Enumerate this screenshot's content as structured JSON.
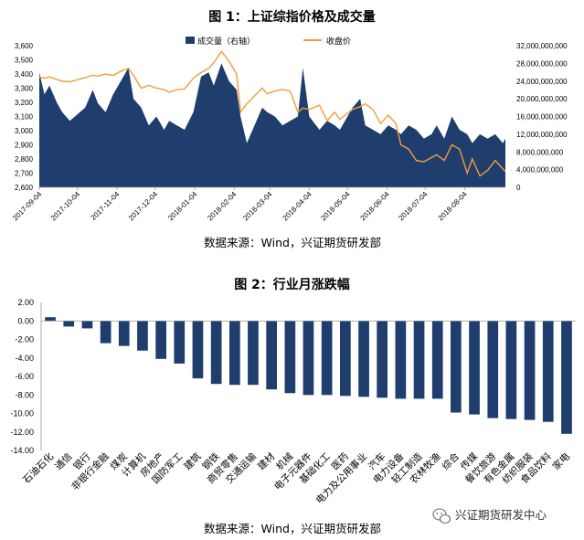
{
  "colors": {
    "volume": "#1f3e6e",
    "close": "#f39c3a",
    "bar": "#1f3e6e",
    "axis": "#999999"
  },
  "chart_data": [
    {
      "type": "area",
      "title": "图 1：上证综指价格及成交量",
      "source": "数据来源：Wind，兴证期货研发部",
      "legend": {
        "position": "top",
        "volume_label": "成交量（右轴）",
        "close_label": "收盘价"
      },
      "left_ticks": [
        "3,600",
        "3,500",
        "3,400",
        "3,300",
        "3,200",
        "3,100",
        "3,000",
        "2,900",
        "2,800",
        "2,700",
        "2,600"
      ],
      "right_ticks": [
        "32,000,000,000",
        "28,000,000,000",
        "24,000,000,000",
        "20,000,000,000",
        "16,000,000,000",
        "12,000,000,000",
        "8,000,000,000",
        "4,000,000,000",
        "0"
      ],
      "x_ticks": [
        "2017-09-04",
        "2017-10-04",
        "2017-11-04",
        "2017-12-04",
        "2018-01-04",
        "2018-02-04",
        "2018-03-04",
        "2018-04-04",
        "2018-05-04",
        "2018-06-04",
        "2018-07-04",
        "2018-08-04"
      ],
      "ylim_left": [
        2600,
        3600
      ],
      "ylim_right": [
        0,
        32000000000
      ],
      "xlim": [
        "2017-09-04",
        "2018-09-05"
      ],
      "series": [
        {
          "name": "成交量（右轴）",
          "type": "area",
          "x": [
            "2017-09-04",
            "2017-09-08",
            "2017-09-12",
            "2017-09-18",
            "2017-09-22",
            "2017-09-28",
            "2017-10-10",
            "2017-10-16",
            "2017-10-20",
            "2017-10-26",
            "2017-11-01",
            "2017-11-07",
            "2017-11-13",
            "2017-11-17",
            "2017-11-23",
            "2017-11-29",
            "2017-12-05",
            "2017-12-11",
            "2017-12-15",
            "2017-12-21",
            "2017-12-27",
            "2018-01-03",
            "2018-01-09",
            "2018-01-15",
            "2018-01-19",
            "2018-01-25",
            "2018-01-31",
            "2018-02-06",
            "2018-02-09",
            "2018-02-14",
            "2018-02-26",
            "2018-03-02",
            "2018-03-08",
            "2018-03-14",
            "2018-03-20",
            "2018-03-26",
            "2018-03-30",
            "2018-04-04",
            "2018-04-12",
            "2018-04-18",
            "2018-04-24",
            "2018-04-28",
            "2018-05-08",
            "2018-05-14",
            "2018-05-18",
            "2018-05-24",
            "2018-05-30",
            "2018-06-05",
            "2018-06-11",
            "2018-06-15",
            "2018-06-21",
            "2018-06-27",
            "2018-07-03",
            "2018-07-09",
            "2018-07-13",
            "2018-07-19",
            "2018-07-25",
            "2018-07-31",
            "2018-08-06",
            "2018-08-10",
            "2018-08-16",
            "2018-08-22",
            "2018-08-28",
            "2018-09-03",
            "2018-09-05"
          ],
          "values": [
            26000000000,
            21000000000,
            23000000000,
            19000000000,
            17000000000,
            15000000000,
            18000000000,
            22000000000,
            19000000000,
            17000000000,
            21000000000,
            24000000000,
            27000000000,
            20000000000,
            18000000000,
            14000000000,
            16000000000,
            13000000000,
            15000000000,
            14000000000,
            13000000000,
            17000000000,
            25000000000,
            26000000000,
            23000000000,
            28000000000,
            24000000000,
            22000000000,
            16000000000,
            10000000000,
            18000000000,
            17000000000,
            16000000000,
            14000000000,
            15000000000,
            16000000000,
            27000000000,
            16000000000,
            13000000000,
            15000000000,
            14000000000,
            13000000000,
            18000000000,
            20000000000,
            14000000000,
            13000000000,
            12000000000,
            14000000000,
            13000000000,
            12000000000,
            14000000000,
            13000000000,
            11000000000,
            12000000000,
            14000000000,
            11000000000,
            16000000000,
            13000000000,
            12000000000,
            10000000000,
            12000000000,
            11000000000,
            12000000000,
            10000000000,
            11000000000
          ]
        },
        {
          "name": "收盘价",
          "type": "line",
          "x": [
            "2017-09-04",
            "2017-09-08",
            "2017-09-12",
            "2017-09-18",
            "2017-09-22",
            "2017-09-28",
            "2017-10-10",
            "2017-10-16",
            "2017-10-20",
            "2017-10-26",
            "2017-11-01",
            "2017-11-07",
            "2017-11-13",
            "2017-11-17",
            "2017-11-23",
            "2017-11-29",
            "2017-12-05",
            "2017-12-11",
            "2017-12-15",
            "2017-12-21",
            "2017-12-27",
            "2018-01-03",
            "2018-01-09",
            "2018-01-15",
            "2018-01-19",
            "2018-01-25",
            "2018-01-31",
            "2018-02-06",
            "2018-02-09",
            "2018-02-14",
            "2018-02-26",
            "2018-03-02",
            "2018-03-08",
            "2018-03-14",
            "2018-03-20",
            "2018-03-26",
            "2018-03-30",
            "2018-04-04",
            "2018-04-12",
            "2018-04-18",
            "2018-04-24",
            "2018-04-28",
            "2018-05-08",
            "2018-05-14",
            "2018-05-18",
            "2018-05-24",
            "2018-05-30",
            "2018-06-05",
            "2018-06-11",
            "2018-06-15",
            "2018-06-21",
            "2018-06-27",
            "2018-07-03",
            "2018-07-09",
            "2018-07-13",
            "2018-07-19",
            "2018-07-25",
            "2018-07-31",
            "2018-08-06",
            "2018-08-10",
            "2018-08-16",
            "2018-08-22",
            "2018-08-28",
            "2018-09-03",
            "2018-09-05"
          ],
          "values": [
            3380,
            3370,
            3380,
            3360,
            3350,
            3345,
            3375,
            3390,
            3385,
            3400,
            3390,
            3420,
            3440,
            3390,
            3300,
            3320,
            3300,
            3290,
            3270,
            3290,
            3295,
            3370,
            3410,
            3440,
            3480,
            3560,
            3490,
            3400,
            3130,
            3190,
            3300,
            3260,
            3280,
            3290,
            3280,
            3130,
            3160,
            3150,
            3180,
            3070,
            3130,
            3080,
            3150,
            3170,
            3190,
            3150,
            3050,
            3110,
            3050,
            2900,
            2870,
            2790,
            2780,
            2810,
            2830,
            2790,
            2900,
            2870,
            2700,
            2800,
            2680,
            2720,
            2790,
            2730,
            2710
          ]
        }
      ]
    },
    {
      "type": "bar",
      "title": "图 2：行业月涨跌幅",
      "source": "数据来源：Wind，兴证期货研发部",
      "yticks": [
        "2.00",
        "0.00",
        "-2.00",
        "-4.00",
        "-6.00",
        "-8.00",
        "-10.00",
        "-12.00",
        "-14.00"
      ],
      "ylim": [
        -14,
        2
      ],
      "categories": [
        "石油石化",
        "通信",
        "银行",
        "非银行金融",
        "煤炭",
        "计算机",
        "房地产",
        "国防军工",
        "建筑",
        "钢铁",
        "商贸零售",
        "交通运输",
        "建材",
        "机械",
        "电子元器件",
        "基础化工",
        "医药",
        "电力及公用事业",
        "汽车",
        "电力设备",
        "轻工制造",
        "农林牧渔",
        "综合",
        "传媒",
        "餐饮旅游",
        "有色金属",
        "纺织服装",
        "食品饮料",
        "家电"
      ],
      "values": [
        0.4,
        -0.6,
        -0.8,
        -2.4,
        -2.7,
        -3.2,
        -4.1,
        -4.6,
        -6.2,
        -6.8,
        -6.9,
        -6.9,
        -7.4,
        -7.8,
        -8.0,
        -8.0,
        -8.1,
        -8.2,
        -8.3,
        -8.4,
        -8.4,
        -8.4,
        -9.9,
        -10.1,
        -10.5,
        -10.6,
        -10.7,
        -10.9,
        -12.2
      ]
    }
  ],
  "watermark": {
    "icon": "wechat-icon",
    "text": "兴证期货研发中心"
  }
}
